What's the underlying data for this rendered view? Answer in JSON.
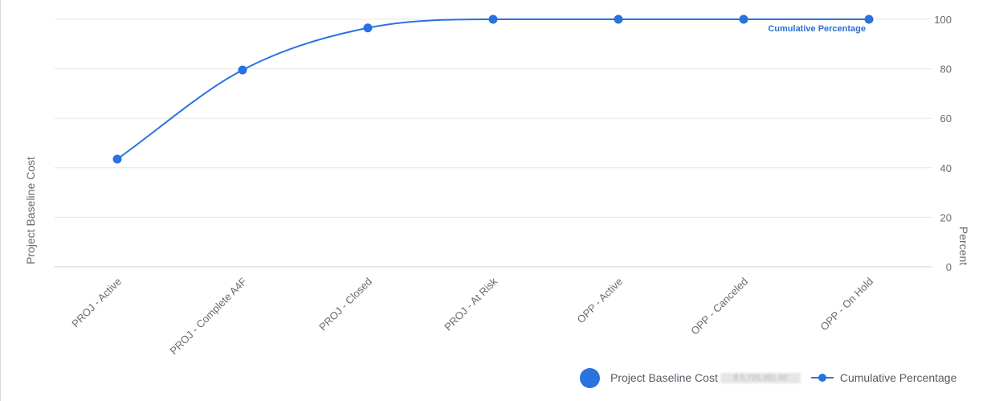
{
  "chart_data": {
    "type": "line",
    "categories": [
      "PROJ - Active",
      "PROJ - Complete A4F",
      "PROJ - Closed",
      "PROJ - At Risk",
      "OPP - Active",
      "OPP - Canceled",
      "OPP - On Hold"
    ],
    "series": [
      {
        "name": "Cumulative Percentage",
        "values": [
          43.5,
          79.5,
          96.5,
          100,
          100,
          100,
          100
        ]
      }
    ],
    "line_label": "Cumulative Percentage",
    "ylabel_left": "Project Baseline Cost",
    "ylabel_right": "Percent",
    "ylim": [
      0,
      100
    ],
    "yticks": [
      "0",
      "20",
      "40",
      "60",
      "80",
      "100"
    ],
    "grid": true,
    "legend_position": "bottom-right",
    "colors": {
      "series": "#2a72de",
      "grid": "#e6e6e6",
      "text": "#666a73"
    }
  },
  "legend": {
    "bar_series_label": "Project Baseline Cost",
    "bar_series_total": "$ 5,725,351.60",
    "line_series_label": "Cumulative Percentage"
  }
}
